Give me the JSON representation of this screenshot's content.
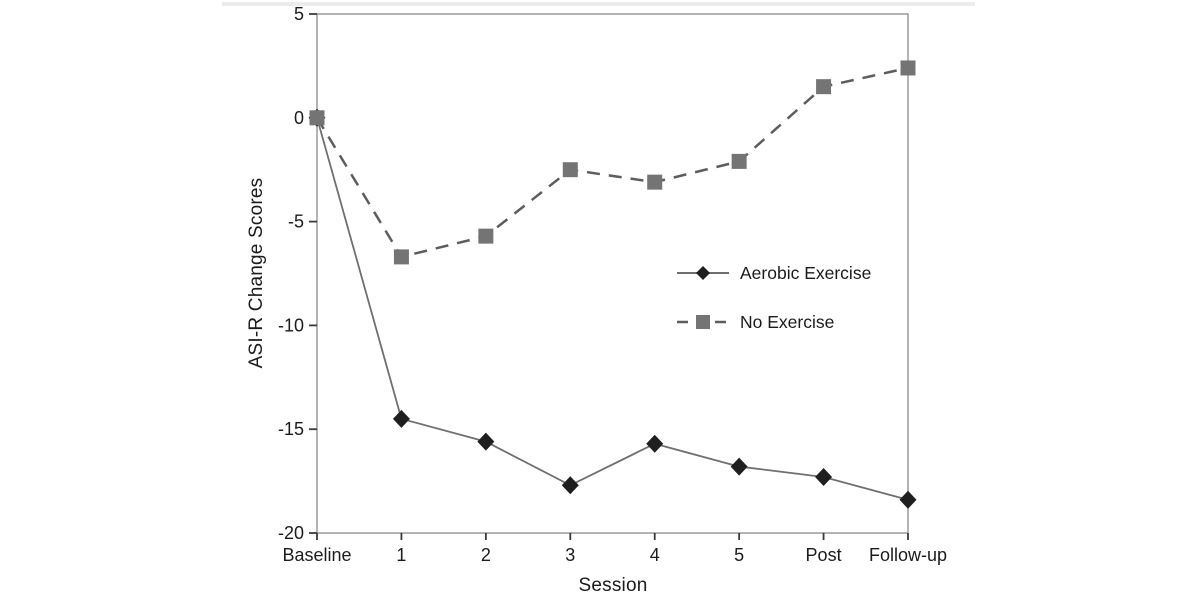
{
  "chart_data": {
    "type": "line",
    "title": "",
    "xlabel": "Session",
    "ylabel": "ASI-R Change Scores",
    "categories": [
      "Baseline",
      "1",
      "2",
      "3",
      "4",
      "5",
      "Post",
      "Follow-up"
    ],
    "series": [
      {
        "name": "Aerobic Exercise",
        "values": [
          0,
          -14.5,
          -15.6,
          -17.7,
          -15.7,
          -16.8,
          -17.3,
          -18.4
        ],
        "line_style": "solid",
        "marker": "diamond",
        "line_color": "#6f6f6f",
        "marker_color": "#1f1f1f"
      },
      {
        "name": "No Exercise",
        "values": [
          0,
          -6.7,
          -5.7,
          -2.5,
          -3.1,
          -2.1,
          1.5,
          2.4
        ],
        "line_style": "dashed",
        "marker": "square",
        "line_color": "#5d5d5d",
        "marker_color": "#747474"
      }
    ],
    "ylim": [
      -20,
      5
    ],
    "yticks": [
      5,
      0,
      -5,
      -10,
      -15,
      -20
    ],
    "grid": false,
    "legend_position": "inside-right-middle",
    "legend_entries": [
      "Aerobic Exercise",
      "No Exercise"
    ],
    "axis_color": "#9a9a9a",
    "tick_color": "#3a3a3a",
    "text_color": "#1b1b1b"
  }
}
